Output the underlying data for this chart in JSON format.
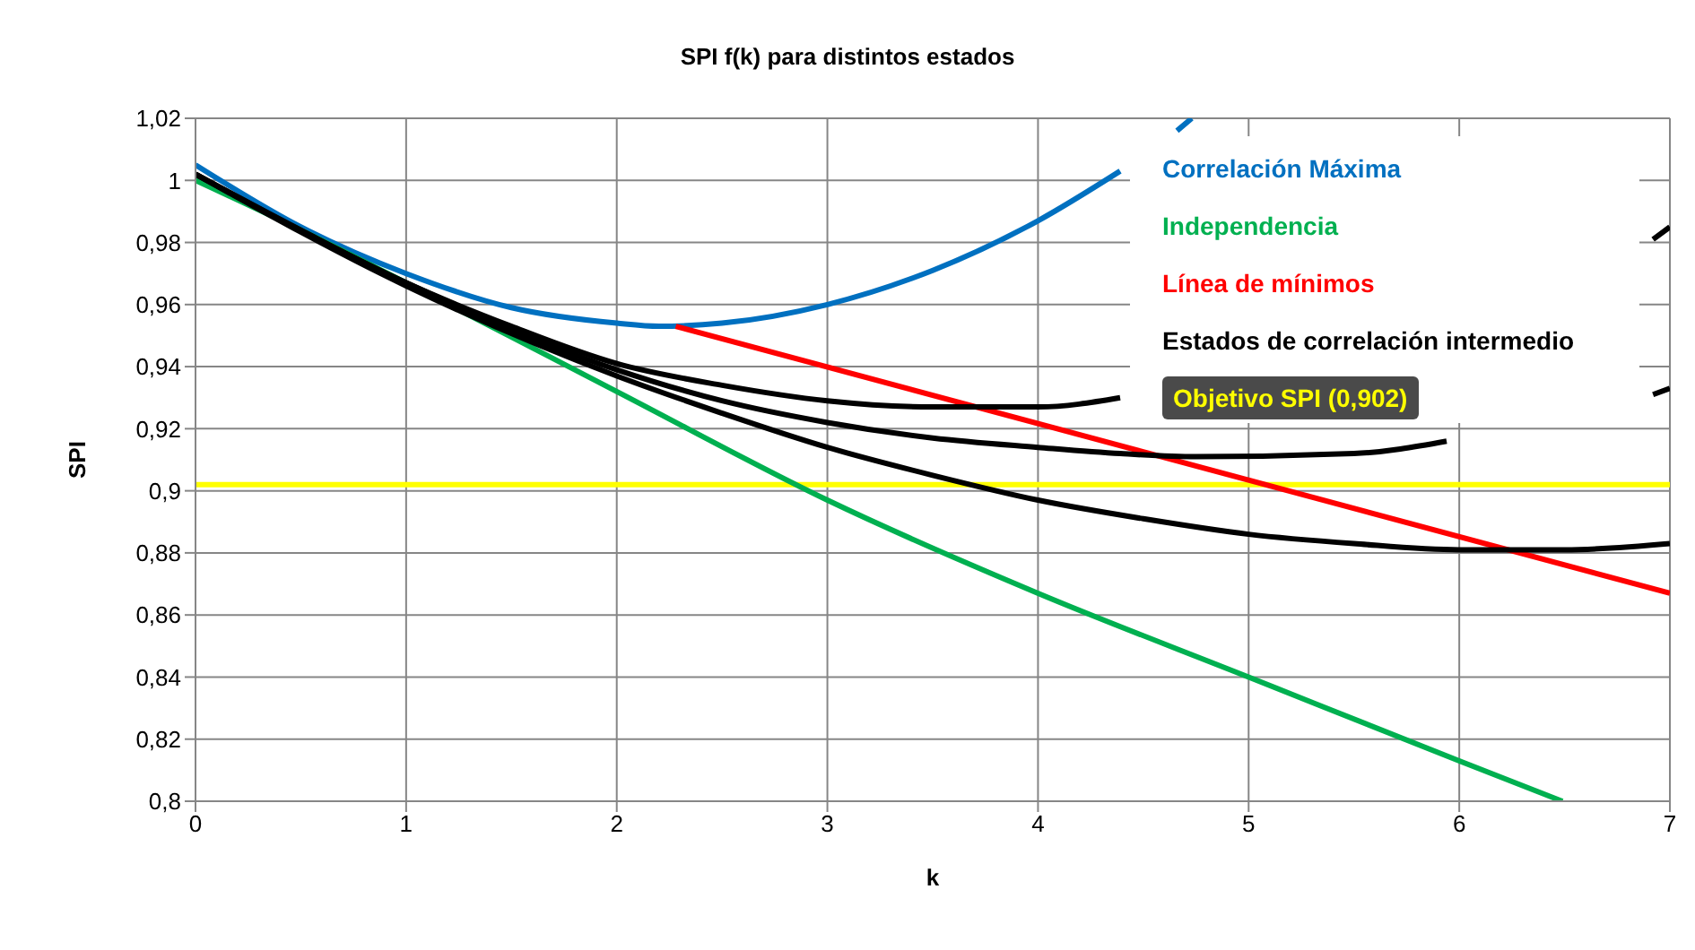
{
  "chart_data": {
    "type": "line",
    "title": "SPI f(k) para distintos estados",
    "xlabel": "k",
    "ylabel": "SPI",
    "xlim": [
      0,
      7
    ],
    "xticks": [
      0,
      1,
      2,
      3,
      4,
      5,
      6,
      7
    ],
    "ylim": [
      0.8,
      1.02
    ],
    "yticks": [
      {
        "value": 0.8,
        "label": "0,8"
      },
      {
        "value": 0.82,
        "label": "0,82"
      },
      {
        "value": 0.84,
        "label": "0,84"
      },
      {
        "value": 0.86,
        "label": "0,86"
      },
      {
        "value": 0.88,
        "label": "0,88"
      },
      {
        "value": 0.9,
        "label": "0,9"
      },
      {
        "value": 0.92,
        "label": "0,92"
      },
      {
        "value": 0.94,
        "label": "0,94"
      },
      {
        "value": 0.96,
        "label": "0,96"
      },
      {
        "value": 0.98,
        "label": "0,98"
      },
      1,
      {
        "value": 1.02,
        "label": "1,02"
      }
    ],
    "grid": true,
    "legend": "top right",
    "marker": "none",
    "line_style": "solid",
    "series": [
      {
        "name": "Correlación Máxima",
        "color": "#0070c0",
        "x": [
          0,
          0.5,
          1,
          1.5,
          2,
          2.2,
          2.5,
          3,
          3.5,
          4,
          4.39,
          4.5,
          4.66,
          4.73
        ],
        "values": [
          1.005,
          0.985,
          0.97,
          0.959,
          0.954,
          0.953,
          0.954,
          0.96,
          0.971,
          0.987,
          1.003,
          null,
          1.016,
          1.02
        ]
      },
      {
        "name": "Independencia",
        "color": "#00b050",
        "x": [
          0,
          0.5,
          1,
          2,
          3,
          4,
          5,
          6,
          6.49
        ],
        "values": [
          1.0,
          0.984,
          0.967,
          0.932,
          0.897,
          0.867,
          0.84,
          0.813,
          0.8
        ]
      },
      {
        "name": "Línea de mínimos",
        "color": "#ff0000",
        "x": [
          2.28,
          7
        ],
        "values": [
          0.953,
          0.867
        ]
      },
      {
        "name": "Estados de correlación intermedio",
        "color": "#000000",
        "x": [
          0,
          0.5,
          1,
          1.5,
          2,
          2.5,
          3,
          3.5,
          4,
          4.39,
          4.5,
          6.92,
          7
        ],
        "values": [
          1.002,
          0.984,
          0.967,
          0.953,
          0.941,
          0.934,
          0.929,
          0.927,
          0.927,
          0.93,
          null,
          0.981,
          0.985
        ]
      },
      {
        "color": "#000000",
        "x": [
          0,
          1,
          2,
          2.5,
          3,
          3.5,
          4,
          4.39,
          4.75,
          5.5,
          5.94,
          6.5,
          6.92,
          7
        ],
        "values": [
          1.002,
          0.967,
          0.939,
          0.929,
          0.922,
          0.917,
          0.914,
          0.912,
          0.911,
          0.912,
          0.916,
          null,
          0.931,
          0.933
        ]
      },
      {
        "color": "#000000",
        "x": [
          0,
          1,
          2,
          2.5,
          3,
          3.5,
          4,
          4.5,
          5,
          5.5,
          6,
          6.5,
          7
        ],
        "values": [
          1.002,
          0.966,
          0.937,
          0.925,
          0.914,
          0.905,
          0.897,
          0.891,
          0.886,
          0.883,
          0.881,
          0.881,
          0.883
        ]
      }
    ],
    "ref_lines": [
      {
        "axis": "y",
        "value": 0.902,
        "label": "Objetivo SPI (0,902)",
        "color": "#ffff00"
      }
    ]
  }
}
